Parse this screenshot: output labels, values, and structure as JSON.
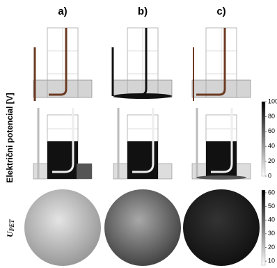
{
  "columns": [
    "a)",
    "b)",
    "c)"
  ],
  "rows": {
    "potential_label": "Električni potencial [V]",
    "upet_label": {
      "main": "U",
      "sub": "PET"
    }
  },
  "colorbars": [
    {
      "ticks": [
        100,
        80,
        60,
        40,
        20,
        0
      ],
      "lim": [
        0,
        100
      ]
    },
    {
      "ticks": [
        60,
        50,
        40,
        30,
        20,
        10
      ],
      "lim": [
        7,
        62
      ]
    }
  ]
}
